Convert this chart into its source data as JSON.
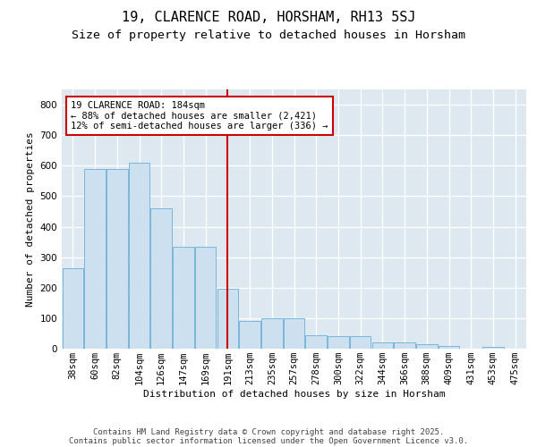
{
  "title": "19, CLARENCE ROAD, HORSHAM, RH13 5SJ",
  "subtitle": "Size of property relative to detached houses in Horsham",
  "xlabel": "Distribution of detached houses by size in Horsham",
  "ylabel": "Number of detached properties",
  "bar_color": "#cce0f0",
  "bar_edge_color": "#6baed6",
  "background_color": "#dde8f0",
  "grid_color": "#ffffff",
  "vline_color": "#cc0000",
  "annotation_text": "19 CLARENCE ROAD: 184sqm\n← 88% of detached houses are smaller (2,421)\n12% of semi-detached houses are larger (336) →",
  "annotation_box_color": "#ffffff",
  "annotation_box_edge": "#cc0000",
  "categories": [
    "38sqm",
    "60sqm",
    "82sqm",
    "104sqm",
    "126sqm",
    "147sqm",
    "169sqm",
    "191sqm",
    "213sqm",
    "235sqm",
    "257sqm",
    "278sqm",
    "300sqm",
    "322sqm",
    "344sqm",
    "366sqm",
    "388sqm",
    "409sqm",
    "431sqm",
    "453sqm",
    "475sqm"
  ],
  "values": [
    265,
    590,
    590,
    610,
    460,
    335,
    335,
    195,
    90,
    100,
    100,
    45,
    40,
    40,
    20,
    20,
    15,
    10,
    0,
    5,
    0
  ],
  "ylim": [
    0,
    850
  ],
  "yticks": [
    0,
    100,
    200,
    300,
    400,
    500,
    600,
    700,
    800
  ],
  "footer_line1": "Contains HM Land Registry data © Crown copyright and database right 2025.",
  "footer_line2": "Contains public sector information licensed under the Open Government Licence v3.0.",
  "title_fontsize": 11,
  "subtitle_fontsize": 9.5,
  "axis_label_fontsize": 8,
  "tick_fontsize": 7.5,
  "footer_fontsize": 6.5,
  "annotation_fontsize": 7.5
}
